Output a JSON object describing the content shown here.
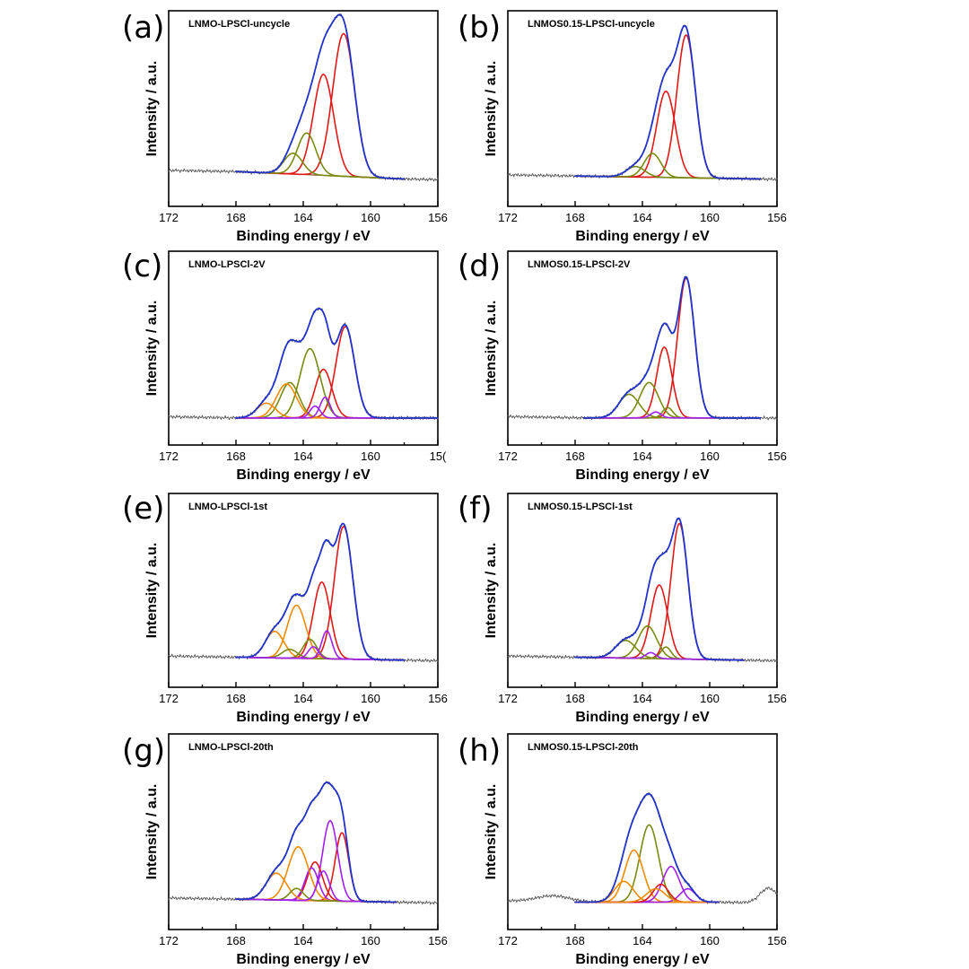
{
  "figure": {
    "colors": {
      "raw": "#555555",
      "envelope": "#2233cc",
      "red": "#e01818",
      "olive": "#7a8a10",
      "orange": "#f08a00",
      "purple": "#a020f0",
      "background": "#7a4010"
    }
  },
  "chart_data": [
    {
      "type": "line",
      "panel_letter": "(a)",
      "sample": "LNMO-LPSCl-uncycle",
      "xlabel": "Binding energy / eV",
      "ylabel": "Intensity / a.u.",
      "xlim": [
        172,
        156
      ],
      "x_reversed": true,
      "xticks": [
        172,
        168,
        164,
        160,
        156
      ],
      "fit_range": [
        168,
        158
      ],
      "baseline": [
        0.05,
        0.0
      ],
      "noise_level": 0.12,
      "peaks": [
        {
          "center": 161.6,
          "height": 0.96,
          "width": 0.65,
          "color": "red"
        },
        {
          "center": 162.8,
          "height": 0.68,
          "width": 0.6,
          "color": "red"
        },
        {
          "center": 163.8,
          "height": 0.28,
          "width": 0.55,
          "color": "olive"
        },
        {
          "center": 164.6,
          "height": 0.14,
          "width": 0.55,
          "color": "olive"
        }
      ]
    },
    {
      "type": "line",
      "panel_letter": "(b)",
      "sample": "LNMOS0.15-LPSCl-uncycle",
      "xlabel": "Binding energy / eV",
      "ylabel": "Intensity / a.u.",
      "xlim": [
        172,
        156
      ],
      "x_reversed": true,
      "xticks": [
        172,
        168,
        164,
        160,
        156
      ],
      "fit_range": [
        168,
        157
      ],
      "baseline": [
        0.02,
        0.0
      ],
      "noise_level": 0.1,
      "peaks": [
        {
          "center": 161.4,
          "height": 0.96,
          "width": 0.55,
          "color": "red"
        },
        {
          "center": 162.6,
          "height": 0.58,
          "width": 0.55,
          "color": "red"
        },
        {
          "center": 163.4,
          "height": 0.16,
          "width": 0.5,
          "color": "olive"
        },
        {
          "center": 164.4,
          "height": 0.07,
          "width": 0.55,
          "color": "olive"
        }
      ]
    },
    {
      "type": "line",
      "panel_letter": "(c)",
      "sample": "LNMO-LPSCl-2V",
      "xlabel": "Binding energy / eV",
      "ylabel": "Intensity / a.u.",
      "xlim": [
        172,
        156
      ],
      "x_reversed": true,
      "xticks": [
        172,
        168,
        164,
        160,
        "156"
      ],
      "xticklabels": [
        "172",
        "168",
        "164",
        "160",
        "15("
      ],
      "fit_range": [
        168,
        156
      ],
      "baseline": [
        0.0,
        0.0
      ],
      "noise_level": 0.18,
      "peaks": [
        {
          "center": 161.5,
          "height": 0.62,
          "width": 0.55,
          "color": "red"
        },
        {
          "center": 162.8,
          "height": 0.33,
          "width": 0.5,
          "color": "red"
        },
        {
          "center": 163.6,
          "height": 0.47,
          "width": 0.6,
          "color": "olive"
        },
        {
          "center": 164.8,
          "height": 0.24,
          "width": 0.55,
          "color": "olive"
        },
        {
          "center": 165.0,
          "height": 0.23,
          "width": 0.6,
          "color": "orange"
        },
        {
          "center": 166.2,
          "height": 0.1,
          "width": 0.55,
          "color": "orange"
        },
        {
          "center": 162.7,
          "height": 0.14,
          "width": 0.3,
          "color": "purple"
        },
        {
          "center": 163.3,
          "height": 0.08,
          "width": 0.3,
          "color": "purple"
        }
      ]
    },
    {
      "type": "line",
      "panel_letter": "(d)",
      "sample": "LNMOS0.15-LPSCl-2V",
      "xlabel": "Binding energy / eV",
      "ylabel": "Intensity / a.u.",
      "xlim": [
        172,
        156
      ],
      "x_reversed": true,
      "xticks": [
        172,
        168,
        164,
        160,
        156
      ],
      "fit_range": [
        167.5,
        157
      ],
      "baseline": [
        0.0,
        0.0
      ],
      "noise_level": 0.12,
      "peaks": [
        {
          "center": 161.4,
          "height": 0.95,
          "width": 0.5,
          "color": "red"
        },
        {
          "center": 162.7,
          "height": 0.48,
          "width": 0.45,
          "color": "red"
        },
        {
          "center": 163.6,
          "height": 0.24,
          "width": 0.55,
          "color": "olive"
        },
        {
          "center": 164.8,
          "height": 0.16,
          "width": 0.6,
          "color": "olive"
        },
        {
          "center": 162.5,
          "height": 0.07,
          "width": 0.3,
          "color": "olive"
        },
        {
          "center": 163.2,
          "height": 0.04,
          "width": 0.3,
          "color": "purple"
        }
      ]
    },
    {
      "type": "line",
      "panel_letter": "(e)",
      "sample": "LNMO-LPSCl-1st",
      "xlabel": "Binding energy / eV",
      "ylabel": "Intensity / a.u.",
      "xlim": [
        172,
        156
      ],
      "x_reversed": true,
      "xticks": [
        172,
        168,
        164,
        160,
        156
      ],
      "fit_range": [
        168,
        158
      ],
      "baseline": [
        0.02,
        0.0
      ],
      "noise_level": 0.15,
      "peaks": [
        {
          "center": 161.6,
          "height": 0.9,
          "width": 0.55,
          "color": "red"
        },
        {
          "center": 162.9,
          "height": 0.52,
          "width": 0.5,
          "color": "red"
        },
        {
          "center": 164.4,
          "height": 0.36,
          "width": 0.55,
          "color": "orange"
        },
        {
          "center": 165.7,
          "height": 0.18,
          "width": 0.55,
          "color": "orange"
        },
        {
          "center": 163.6,
          "height": 0.13,
          "width": 0.4,
          "color": "olive"
        },
        {
          "center": 164.8,
          "height": 0.06,
          "width": 0.45,
          "color": "olive"
        },
        {
          "center": 162.6,
          "height": 0.19,
          "width": 0.3,
          "color": "purple"
        },
        {
          "center": 163.4,
          "height": 0.08,
          "width": 0.3,
          "color": "purple"
        }
      ]
    },
    {
      "type": "line",
      "panel_letter": "(f)",
      "sample": "LNMOS0.15-LPSCl-1st",
      "xlabel": "Binding energy / eV",
      "ylabel": "Intensity / a.u.",
      "xlim": [
        172,
        156
      ],
      "x_reversed": true,
      "xticks": [
        172,
        168,
        164,
        160,
        156
      ],
      "fit_range": [
        168,
        158
      ],
      "baseline": [
        0.02,
        0.0
      ],
      "noise_level": 0.12,
      "peaks": [
        {
          "center": 161.8,
          "height": 0.92,
          "width": 0.5,
          "color": "red"
        },
        {
          "center": 163.0,
          "height": 0.5,
          "width": 0.5,
          "color": "red"
        },
        {
          "center": 163.7,
          "height": 0.22,
          "width": 0.55,
          "color": "olive"
        },
        {
          "center": 165.0,
          "height": 0.12,
          "width": 0.6,
          "color": "olive"
        },
        {
          "center": 162.6,
          "height": 0.08,
          "width": 0.3,
          "color": "olive"
        },
        {
          "center": 163.5,
          "height": 0.04,
          "width": 0.3,
          "color": "purple"
        }
      ]
    },
    {
      "type": "line",
      "panel_letter": "(g)",
      "sample": "LNMO-LPSCl-20th",
      "xlabel": "Binding energy / eV",
      "ylabel": "Intensity / a.u.",
      "xlim": [
        172,
        156
      ],
      "x_reversed": true,
      "xticks": [
        172,
        168,
        164,
        160,
        156
      ],
      "fit_range": [
        168,
        158.5
      ],
      "baseline": [
        0.02,
        0.0
      ],
      "noise_level": 0.12,
      "peaks": [
        {
          "center": 161.7,
          "height": 0.46,
          "width": 0.4,
          "color": "red"
        },
        {
          "center": 162.4,
          "height": 0.54,
          "width": 0.45,
          "color": "purple"
        },
        {
          "center": 163.3,
          "height": 0.26,
          "width": 0.45,
          "color": "red"
        },
        {
          "center": 163.5,
          "height": 0.22,
          "width": 0.4,
          "color": "purple"
        },
        {
          "center": 164.3,
          "height": 0.36,
          "width": 0.6,
          "color": "orange"
        },
        {
          "center": 165.6,
          "height": 0.18,
          "width": 0.6,
          "color": "orange"
        },
        {
          "center": 164.4,
          "height": 0.08,
          "width": 0.4,
          "color": "olive"
        },
        {
          "center": 162.8,
          "height": 0.2,
          "width": 0.35,
          "color": "purple"
        }
      ]
    },
    {
      "type": "line",
      "panel_letter": "(h)",
      "sample": "LNMOS0.15-LPSCl-20th",
      "xlabel": "Binding energy / eV",
      "ylabel": "Intensity / a.u.",
      "xlim": [
        172,
        156
      ],
      "x_reversed": true,
      "xticks": [
        172,
        168,
        164,
        160,
        156
      ],
      "fit_range": [
        168,
        159.5
      ],
      "baseline": [
        0.0,
        0.0
      ],
      "noise_level": 0.14,
      "raw_bumps": [
        {
          "center": 169.3,
          "height": 0.04,
          "width": 1.0
        },
        {
          "center": 156.5,
          "height": 0.1,
          "width": 0.5
        }
      ],
      "peaks": [
        {
          "center": 163.6,
          "height": 0.52,
          "width": 0.55,
          "color": "olive"
        },
        {
          "center": 164.5,
          "height": 0.35,
          "width": 0.55,
          "color": "orange"
        },
        {
          "center": 165.1,
          "height": 0.14,
          "width": 0.55,
          "color": "orange"
        },
        {
          "center": 162.3,
          "height": 0.24,
          "width": 0.5,
          "color": "purple"
        },
        {
          "center": 161.3,
          "height": 0.09,
          "width": 0.45,
          "color": "purple"
        },
        {
          "center": 162.9,
          "height": 0.12,
          "width": 0.45,
          "color": "red"
        },
        {
          "center": 163.2,
          "height": 0.09,
          "width": 0.55,
          "color": "orange"
        }
      ]
    }
  ]
}
